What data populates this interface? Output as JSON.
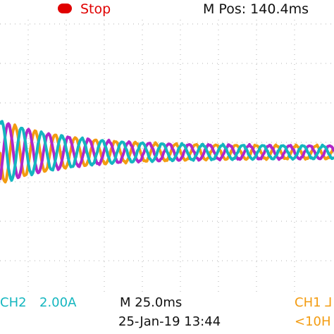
{
  "top_bar": {
    "run_status": "Stop",
    "position_readout": "M Pos: 140.4ms",
    "status_color": "#e00000"
  },
  "bottom_bar": {
    "ch2_label": "CH2",
    "ch2_scale": "2.00A",
    "timebase": "M 25.0ms",
    "ch1_label": "CH1 ⅃",
    "date_time": "25-Jan-19 13:44",
    "frequency": "<10H"
  },
  "colors": {
    "phase_orange": "#f39c12",
    "phase_purple": "#b027c9",
    "phase_teal": "#14b6bf",
    "grid": "#b0b0b0",
    "text": "#111111"
  },
  "waveforms": [
    {
      "name": "orange"
    },
    {
      "name": "purple"
    },
    {
      "name": "teal"
    }
  ]
}
